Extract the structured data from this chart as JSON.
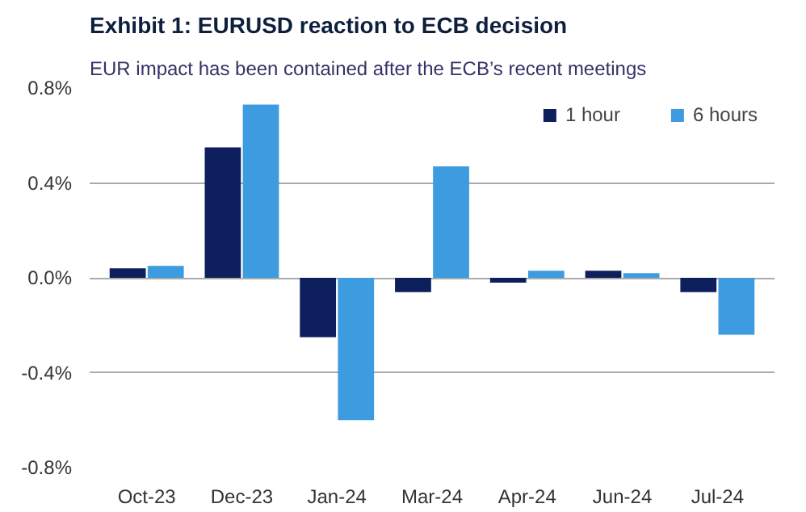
{
  "chart_data": {
    "type": "bar",
    "title": "Exhibit 1: EURUSD reaction to ECB decision",
    "subtitle": "EUR impact has been contained after the ECB’s recent meetings",
    "categories": [
      "Oct-23",
      "Dec-23",
      "Jan-24",
      "Mar-24",
      "Apr-24",
      "Jun-24",
      "Jul-24"
    ],
    "series": [
      {
        "name": "1 hour",
        "color": "#0d1f5c",
        "values": [
          0.04,
          0.55,
          -0.25,
          -0.06,
          -0.02,
          0.03,
          -0.06
        ]
      },
      {
        "name": "6 hours",
        "color": "#3d9be0",
        "values": [
          0.05,
          0.73,
          -0.6,
          0.47,
          0.03,
          0.02,
          -0.24
        ]
      }
    ],
    "ylim": [
      -0.8,
      0.8
    ],
    "yticks": [
      {
        "value": -0.8,
        "label": "-0.8%"
      },
      {
        "value": -0.4,
        "label": "-0.4%"
      },
      {
        "value": 0,
        "label": "0.0%"
      },
      {
        "value": 0.4,
        "label": "0.4%"
      },
      {
        "value": 0.8,
        "label": "0.8%"
      }
    ],
    "grid": "y",
    "legend": "top right"
  }
}
